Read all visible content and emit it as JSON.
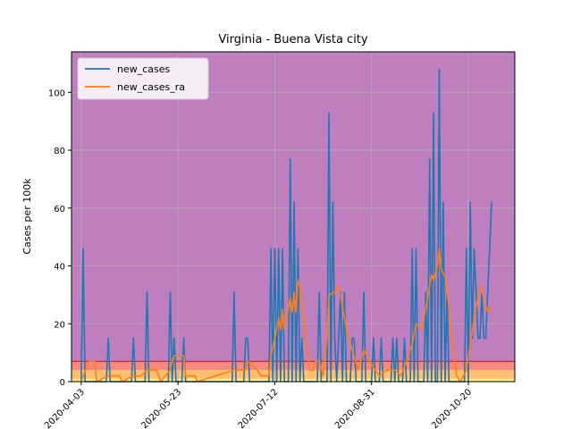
{
  "chart_data": {
    "type": "line",
    "title": "Virginia - Buena Vista city",
    "xlabel": "",
    "ylabel": "Cases per 100k",
    "ylim": [
      0,
      114
    ],
    "xlim": [
      "2020-03-29",
      "2020-11-13"
    ],
    "x_ticks": [
      "2020-04-03",
      "2020-05-23",
      "2020-07-12",
      "2020-08-31",
      "2020-10-20"
    ],
    "y_ticks": [
      0,
      20,
      40,
      60,
      80,
      100
    ],
    "grid": true,
    "legend_position": "top-left",
    "background_bands": [
      {
        "from": 0,
        "to": 1,
        "color": "#fff27a"
      },
      {
        "from": 1,
        "to": 4,
        "color": "#ffbf6e"
      },
      {
        "from": 4,
        "to": 7,
        "color": "#f78a80"
      },
      {
        "from": 7,
        "to": 114,
        "color": "#bf7fbf"
      }
    ],
    "threshold_line": {
      "value": 7,
      "color": "#d62728"
    },
    "series": [
      {
        "name": "new_cases",
        "color": "#1f77b4",
        "points": [
          [
            "2020-04-03",
            0
          ],
          [
            "2020-04-04",
            46
          ],
          [
            "2020-04-05",
            0
          ],
          [
            "2020-04-16",
            0
          ],
          [
            "2020-04-17",
            15
          ],
          [
            "2020-04-18",
            0
          ],
          [
            "2020-04-29",
            0
          ],
          [
            "2020-04-30",
            15
          ],
          [
            "2020-05-01",
            0
          ],
          [
            "2020-05-06",
            0
          ],
          [
            "2020-05-07",
            31
          ],
          [
            "2020-05-08",
            0
          ],
          [
            "2020-05-18",
            0
          ],
          [
            "2020-05-19",
            31
          ],
          [
            "2020-05-20",
            0
          ],
          [
            "2020-05-21",
            15
          ],
          [
            "2020-05-22",
            0
          ],
          [
            "2020-05-25",
            0
          ],
          [
            "2020-05-26",
            15
          ],
          [
            "2020-05-27",
            0
          ],
          [
            "2020-06-20",
            0
          ],
          [
            "2020-06-21",
            31
          ],
          [
            "2020-06-22",
            0
          ],
          [
            "2020-06-26",
            0
          ],
          [
            "2020-06-27",
            15
          ],
          [
            "2020-06-28",
            15
          ],
          [
            "2020-06-29",
            0
          ],
          [
            "2020-07-09",
            0
          ],
          [
            "2020-07-10",
            46
          ],
          [
            "2020-07-11",
            0
          ],
          [
            "2020-07-12",
            46
          ],
          [
            "2020-07-13",
            0
          ],
          [
            "2020-07-14",
            46
          ],
          [
            "2020-07-15",
            0
          ],
          [
            "2020-07-16",
            46
          ],
          [
            "2020-07-17",
            0
          ],
          [
            "2020-07-19",
            0
          ],
          [
            "2020-07-20",
            77
          ],
          [
            "2020-07-21",
            0
          ],
          [
            "2020-07-22",
            62
          ],
          [
            "2020-07-23",
            0
          ],
          [
            "2020-07-24",
            46
          ],
          [
            "2020-07-25",
            0
          ],
          [
            "2020-07-26",
            15
          ],
          [
            "2020-07-27",
            0
          ],
          [
            "2020-08-03",
            0
          ],
          [
            "2020-08-04",
            31
          ],
          [
            "2020-08-05",
            0
          ],
          [
            "2020-08-08",
            0
          ],
          [
            "2020-08-09",
            93
          ],
          [
            "2020-08-10",
            0
          ],
          [
            "2020-08-11",
            62
          ],
          [
            "2020-08-12",
            15
          ],
          [
            "2020-08-13",
            0
          ],
          [
            "2020-08-14",
            15
          ],
          [
            "2020-08-15",
            31
          ],
          [
            "2020-08-16",
            0
          ],
          [
            "2020-08-17",
            31
          ],
          [
            "2020-08-18",
            0
          ],
          [
            "2020-08-20",
            0
          ],
          [
            "2020-08-21",
            15
          ],
          [
            "2020-08-22",
            15
          ],
          [
            "2020-08-23",
            0
          ],
          [
            "2020-08-26",
            0
          ],
          [
            "2020-08-27",
            31
          ],
          [
            "2020-08-28",
            0
          ],
          [
            "2020-08-31",
            0
          ],
          [
            "2020-09-01",
            15
          ],
          [
            "2020-09-02",
            0
          ],
          [
            "2020-09-04",
            0
          ],
          [
            "2020-09-05",
            15
          ],
          [
            "2020-09-06",
            0
          ],
          [
            "2020-09-10",
            0
          ],
          [
            "2020-09-11",
            15
          ],
          [
            "2020-09-12",
            0
          ],
          [
            "2020-09-13",
            15
          ],
          [
            "2020-09-14",
            0
          ],
          [
            "2020-09-16",
            0
          ],
          [
            "2020-09-17",
            15
          ],
          [
            "2020-09-18",
            0
          ],
          [
            "2020-09-20",
            0
          ],
          [
            "2020-09-21",
            46
          ],
          [
            "2020-09-22",
            0
          ],
          [
            "2020-09-23",
            46
          ],
          [
            "2020-09-24",
            0
          ],
          [
            "2020-09-27",
            0
          ],
          [
            "2020-09-28",
            31
          ],
          [
            "2020-09-29",
            0
          ],
          [
            "2020-09-30",
            77
          ],
          [
            "2020-10-01",
            0
          ],
          [
            "2020-10-02",
            93
          ],
          [
            "2020-10-03",
            0
          ],
          [
            "2020-10-04",
            0
          ],
          [
            "2020-10-05",
            108
          ],
          [
            "2020-10-06",
            0
          ],
          [
            "2020-10-07",
            62
          ],
          [
            "2020-10-08",
            0
          ],
          [
            "2020-10-09",
            31
          ],
          [
            "2020-10-10",
            0
          ],
          [
            "2020-10-18",
            0
          ],
          [
            "2020-10-19",
            46
          ],
          [
            "2020-10-20",
            0
          ],
          [
            "2020-10-21",
            62
          ],
          [
            "2020-10-22",
            15
          ],
          [
            "2020-10-23",
            46
          ],
          [
            "2020-10-24",
            31
          ],
          [
            "2020-10-25",
            15
          ],
          [
            "2020-10-26",
            15
          ],
          [
            "2020-10-27",
            31
          ],
          [
            "2020-10-28",
            15
          ],
          [
            "2020-10-29",
            15
          ],
          [
            "2020-10-30",
            31
          ],
          [
            "2020-10-31",
            46
          ],
          [
            "2020-11-01",
            62
          ]
        ]
      },
      {
        "name": "new_cases_ra",
        "color": "#ff7f0e",
        "points": [
          [
            "2020-04-03",
            0
          ],
          [
            "2020-04-07",
            7
          ],
          [
            "2020-04-10",
            7
          ],
          [
            "2020-04-11",
            0
          ],
          [
            "2020-04-17",
            2
          ],
          [
            "2020-04-23",
            2
          ],
          [
            "2020-04-24",
            0
          ],
          [
            "2020-04-30",
            2
          ],
          [
            "2020-05-04",
            2
          ],
          [
            "2020-05-07",
            4
          ],
          [
            "2020-05-12",
            4
          ],
          [
            "2020-05-14",
            0
          ],
          [
            "2020-05-19",
            4
          ],
          [
            "2020-05-20",
            7
          ],
          [
            "2020-05-21",
            9
          ],
          [
            "2020-05-26",
            9
          ],
          [
            "2020-05-27",
            2
          ],
          [
            "2020-06-01",
            2
          ],
          [
            "2020-06-02",
            0
          ],
          [
            "2020-06-21",
            4
          ],
          [
            "2020-06-27",
            4
          ],
          [
            "2020-06-28",
            7
          ],
          [
            "2020-07-03",
            4
          ],
          [
            "2020-07-05",
            2
          ],
          [
            "2020-07-09",
            2
          ],
          [
            "2020-07-10",
            9
          ],
          [
            "2020-07-12",
            15
          ],
          [
            "2020-07-14",
            22
          ],
          [
            "2020-07-15",
            18
          ],
          [
            "2020-07-16",
            25
          ],
          [
            "2020-07-17",
            18
          ],
          [
            "2020-07-20",
            29
          ],
          [
            "2020-07-21",
            24
          ],
          [
            "2020-07-22",
            31
          ],
          [
            "2020-07-23",
            24
          ],
          [
            "2020-07-24",
            35
          ],
          [
            "2020-07-25",
            33
          ],
          [
            "2020-07-27",
            22
          ],
          [
            "2020-07-28",
            15
          ],
          [
            "2020-07-30",
            4
          ],
          [
            "2020-08-01",
            4
          ],
          [
            "2020-08-02",
            7
          ],
          [
            "2020-08-04",
            7
          ],
          [
            "2020-08-06",
            2
          ],
          [
            "2020-08-08",
            15
          ],
          [
            "2020-08-09",
            30
          ],
          [
            "2020-08-12",
            31
          ],
          [
            "2020-08-14",
            33
          ],
          [
            "2020-08-16",
            26
          ],
          [
            "2020-08-18",
            18
          ],
          [
            "2020-08-20",
            13
          ],
          [
            "2020-08-22",
            9
          ],
          [
            "2020-08-24",
            4
          ],
          [
            "2020-08-27",
            11
          ],
          [
            "2020-08-30",
            7
          ],
          [
            "2020-09-02",
            4
          ],
          [
            "2020-09-04",
            2
          ],
          [
            "2020-09-08",
            4
          ],
          [
            "2020-09-12",
            4
          ],
          [
            "2020-09-15",
            2
          ],
          [
            "2020-09-18",
            7
          ],
          [
            "2020-09-21",
            13
          ],
          [
            "2020-09-23",
            20
          ],
          [
            "2020-09-26",
            18
          ],
          [
            "2020-09-29",
            29
          ],
          [
            "2020-10-01",
            37
          ],
          [
            "2020-10-02",
            35
          ],
          [
            "2020-10-04",
            40
          ],
          [
            "2020-10-05",
            46
          ],
          [
            "2020-10-06",
            39
          ],
          [
            "2020-10-08",
            36
          ],
          [
            "2020-10-10",
            26
          ],
          [
            "2020-10-12",
            13
          ],
          [
            "2020-10-14",
            2
          ],
          [
            "2020-10-16",
            0
          ],
          [
            "2020-10-19",
            4
          ],
          [
            "2020-10-21",
            13
          ],
          [
            "2020-10-24",
            26
          ],
          [
            "2020-10-26",
            33
          ],
          [
            "2020-10-28",
            29
          ],
          [
            "2020-10-30",
            24
          ],
          [
            "2020-11-01",
            26
          ]
        ]
      }
    ]
  }
}
